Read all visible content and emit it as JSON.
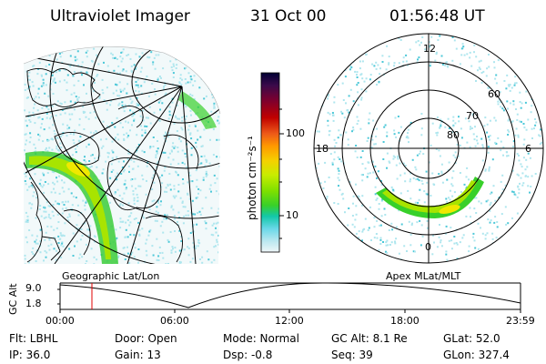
{
  "header": {
    "title": "Ultraviolet Imager",
    "date": "31 Oct 00",
    "time": "01:56:48 UT"
  },
  "colorbar": {
    "unit_label": "photon cm⁻²s⁻¹",
    "ticks": [
      "100",
      "10"
    ],
    "colors": [
      "#000033",
      "#3a0a4a",
      "#7a0030",
      "#b40000",
      "#e8441c",
      "#ff9a00",
      "#f5d000",
      "#c8ec00",
      "#7ee000",
      "#38d02a",
      "#12c8a8",
      "#6ad8e8",
      "#bce8f0",
      "#e8f4f6"
    ]
  },
  "left_map": {
    "label": "Geographic Lat/Lon"
  },
  "right_map": {
    "label": "Apex MLat/MLT",
    "mlt_labels": [
      "12",
      "18",
      "6",
      "0"
    ],
    "lat_labels": [
      "60",
      "70",
      "80"
    ]
  },
  "timeline": {
    "axis_label": "GC Alt",
    "y_ticks": [
      "9.0",
      "1.8"
    ],
    "x_ticks": [
      "00:00",
      "06:00",
      "12:00",
      "18:00",
      "23:59"
    ],
    "marker_time": "01:56:48"
  },
  "status": {
    "flt": "Flt: LBHL",
    "ip": "IP: 36.0",
    "door": "Door: Open",
    "gain": "Gain: 13",
    "mode": "Mode: Normal",
    "dsp": "Dsp:    -0.8",
    "gc_alt": "GC Alt: 8.1 Re",
    "seq": "Seq: 39",
    "glat": "GLat:  52.0",
    "glon": "GLon: 327.4"
  },
  "accent_colors": {
    "marker": "#e00000",
    "speckle": "#aee6ee",
    "speckle_dark": "#4cc8d8",
    "aurora_outer": "#3ccd3a",
    "aurora_mid": "#a8e400",
    "aurora_core": "#f0e800"
  }
}
